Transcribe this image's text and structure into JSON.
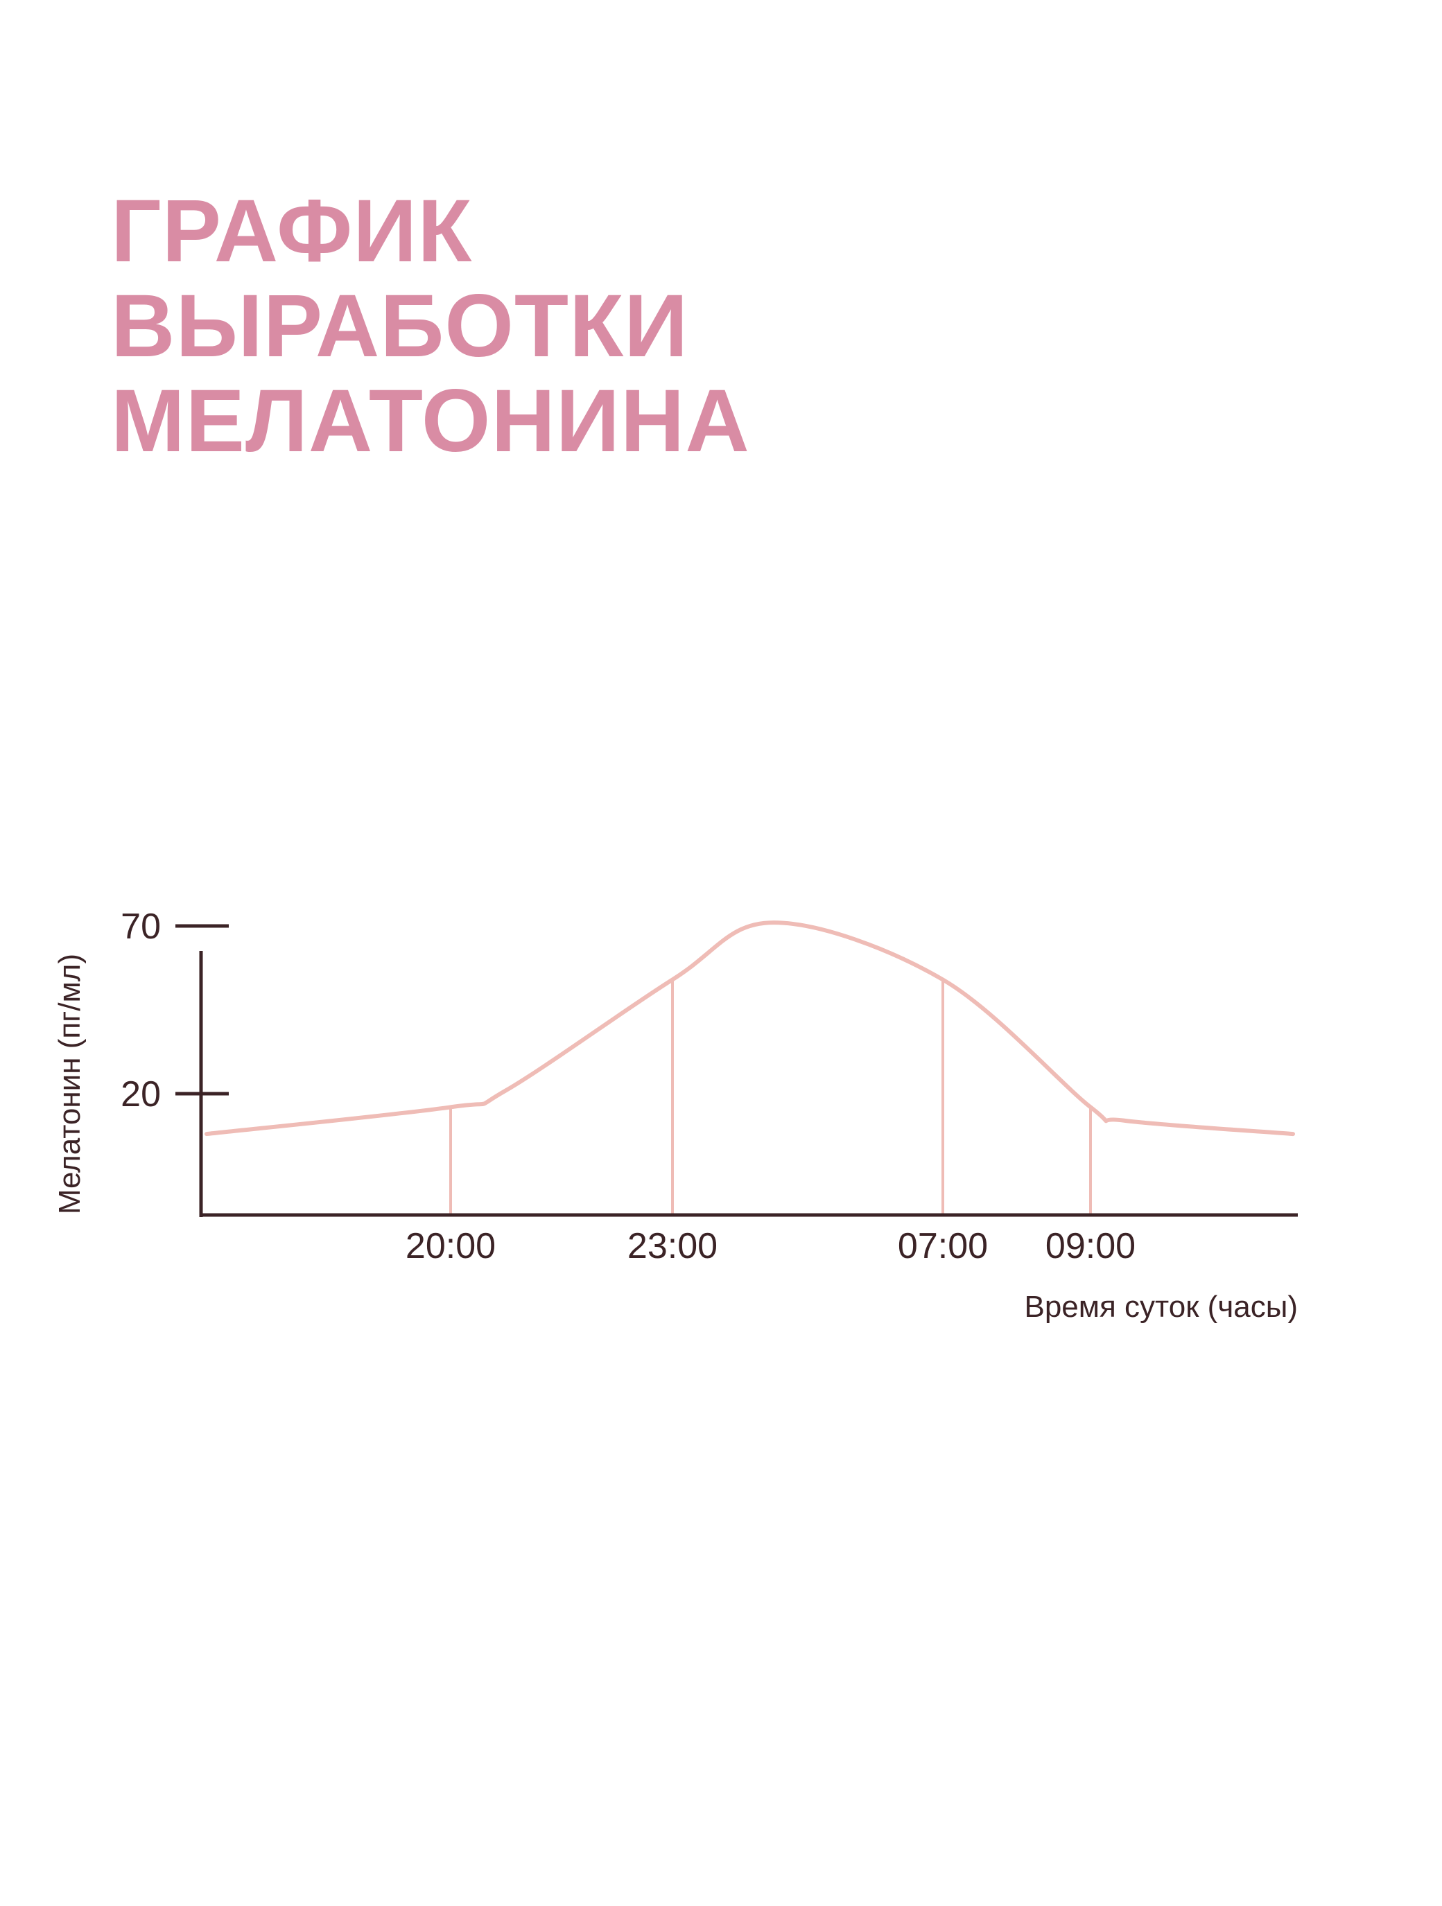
{
  "title_lines": [
    "ГРАФИК",
    "ВЫРАБОТКИ",
    "МЕЛАТОНИНА"
  ],
  "colors": {
    "title": "#d98ca4",
    "axis": "#3b2326",
    "curve": "#efbcb6"
  },
  "chart_data": {
    "type": "line",
    "xlabel": "Время суток (часы)",
    "ylabel": "Мелатонин (пг/мл)",
    "x_tick_labels": [
      "20:00",
      "23:00",
      "07:00",
      "09:00"
    ],
    "y_ticks": [
      20,
      70
    ],
    "ylim": [
      5,
      78
    ],
    "grid": false,
    "series": [
      {
        "x": [
          "16:40",
          "20:00",
          "20:45",
          "23:00",
          "02:00",
          "07:00",
          "09:00",
          "09:25",
          "11:30"
        ],
        "values": [
          8,
          16,
          21,
          54,
          71,
          54,
          16,
          12,
          8
        ]
      }
    ],
    "drop_lines_at": [
      "20:00",
      "23:00",
      "07:00",
      "09:00"
    ]
  }
}
